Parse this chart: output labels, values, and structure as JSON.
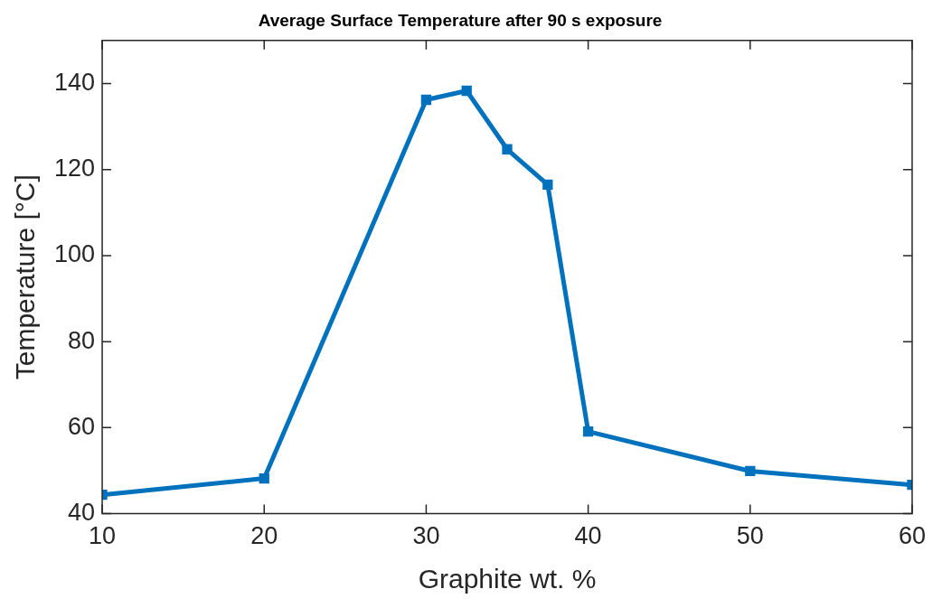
{
  "chart_data": {
    "type": "line",
    "title": "Average Surface Temperature after 90 s exposure",
    "xlabel": "Graphite wt. %",
    "ylabel": "Temperature [°C]",
    "x": [
      10,
      20,
      30,
      32.5,
      35,
      37.5,
      40,
      50,
      60
    ],
    "series": [
      {
        "color": "#0072bd",
        "values": [
          44.4,
          48.2,
          136.2,
          138.3,
          124.7,
          116.5,
          59.1,
          49.9,
          46.7
        ]
      }
    ],
    "xlim": [
      10,
      60
    ],
    "xticks": [
      10,
      20,
      30,
      40,
      50,
      60
    ],
    "ylim": [
      40,
      150
    ],
    "yticks": [
      40,
      60,
      80,
      100,
      120,
      140
    ],
    "grid": false,
    "legend": false,
    "marker": "square",
    "line_style": "solid"
  }
}
